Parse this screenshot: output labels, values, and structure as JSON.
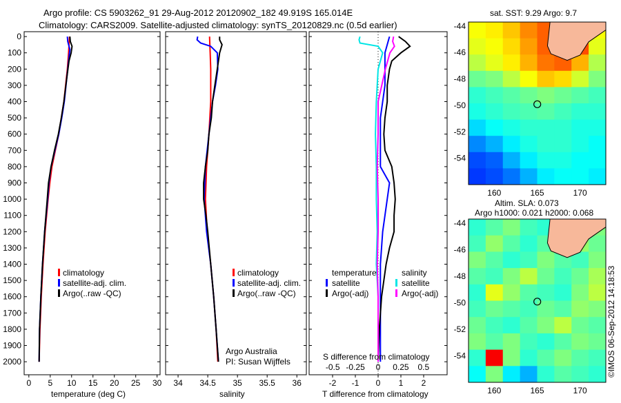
{
  "title_line1": "Argo profile: CS 5903262_91 29-Aug-2012 20120902_182 49.919S 165.014E",
  "title_line2": "Climatology: CARS2009. Satellite-adjusted climatology: synTS_20120829.nc (0.5d earlier)",
  "credit": "©IMOS 06-Sep-2012 14:18:53",
  "colors": {
    "climatology": "#ff0000",
    "satellite": "#0000ff",
    "argo": "#000000",
    "sal_satellite": "#00e5e5",
    "sal_argo": "#ff00ff"
  },
  "chart_data": [
    {
      "type": "line",
      "id": "temperature",
      "xlabel": "temperature (deg C)",
      "ylabel": "",
      "xlim": [
        -1.1,
        30.7
      ],
      "ylim": [
        2080,
        -30
      ],
      "xticks": [
        0,
        5,
        10,
        15,
        20,
        25,
        30
      ],
      "yticks": [
        0,
        100,
        200,
        300,
        400,
        500,
        600,
        700,
        800,
        900,
        1000,
        1100,
        1200,
        1300,
        1400,
        1500,
        1600,
        1700,
        1800,
        1900,
        2000
      ],
      "legend": [
        "climatology",
        "satellite-adj. clim.",
        "Argo(..raw -QC)"
      ],
      "series": [
        {
          "name": "climatology",
          "color": "#ff0000",
          "depth": [
            0,
            100,
            200,
            300,
            400,
            500,
            600,
            700,
            800,
            900,
            1000,
            1200,
            1400,
            1600,
            1800,
            2000
          ],
          "values": [
            9.5,
            9.3,
            9.0,
            8.6,
            8.2,
            7.6,
            7.0,
            6.2,
            5.4,
            4.9,
            4.5,
            3.8,
            3.3,
            2.9,
            2.6,
            2.4
          ]
        },
        {
          "name": "satellite-adj. clim.",
          "color": "#0000ff",
          "depth": [
            0,
            30,
            80,
            150,
            250,
            400,
            500,
            600,
            700,
            800,
            900,
            1000,
            1200,
            1400,
            1600,
            1800,
            2000
          ],
          "values": [
            9.0,
            9.1,
            9.6,
            9.3,
            8.9,
            8.3,
            7.7,
            7.0,
            6.1,
            5.2,
            4.7,
            4.4,
            3.7,
            3.2,
            2.8,
            2.5,
            2.4
          ]
        },
        {
          "name": "Argo(..raw -QC)",
          "color": "#000000",
          "depth": [
            0,
            30,
            60,
            100,
            150,
            250,
            400,
            500,
            600,
            700,
            800,
            900,
            1000,
            1200,
            1400,
            1600,
            1800,
            2000
          ],
          "values": [
            9.6,
            9.7,
            10.1,
            9.9,
            9.4,
            8.9,
            8.2,
            7.6,
            6.9,
            6.0,
            5.2,
            4.6,
            4.3,
            3.7,
            3.2,
            2.8,
            2.5,
            2.4
          ]
        }
      ]
    },
    {
      "type": "line",
      "id": "salinity",
      "xlabel": "salinity",
      "ylabel": "",
      "xlim": [
        33.79,
        36.16
      ],
      "ylim": [
        2080,
        -30
      ],
      "xticks": [
        34,
        34.5,
        35,
        35.5,
        36
      ],
      "legend": [
        "climatology",
        "satellite-adj. clim.",
        "Argo(..raw -QC)"
      ],
      "annotation": [
        "Argo Australia",
        "PI: Susan Wijffels"
      ],
      "series": [
        {
          "name": "climatology",
          "color": "#ff0000",
          "depth": [
            0,
            100,
            200,
            400,
            600,
            800,
            1000,
            1200,
            1400,
            1600,
            1800,
            2000
          ],
          "values": [
            34.53,
            34.54,
            34.55,
            34.55,
            34.52,
            34.48,
            34.46,
            34.49,
            34.55,
            34.6,
            34.64,
            34.67
          ]
        },
        {
          "name": "satellite-adj. clim.",
          "color": "#0000ff",
          "depth": [
            0,
            20,
            40,
            60,
            100,
            200,
            300,
            400,
            600,
            800,
            1000,
            1200,
            1400,
            1600,
            1800,
            2000
          ],
          "values": [
            34.33,
            34.32,
            34.38,
            34.55,
            34.66,
            34.67,
            34.63,
            34.58,
            34.52,
            34.46,
            34.44,
            34.48,
            34.55,
            34.6,
            34.64,
            34.68
          ]
        },
        {
          "name": "Argo(..raw -QC)",
          "color": "#000000",
          "depth": [
            0,
            20,
            50,
            100,
            150,
            200,
            300,
            400,
            500,
            600,
            700,
            800,
            900,
            1000,
            1100,
            1200,
            1400,
            1600,
            1800,
            2000
          ],
          "values": [
            34.7,
            34.7,
            34.74,
            34.7,
            34.68,
            34.66,
            34.62,
            34.58,
            34.56,
            34.52,
            34.5,
            34.46,
            34.43,
            34.43,
            34.47,
            34.5,
            34.55,
            34.6,
            34.64,
            34.68
          ]
        }
      ]
    },
    {
      "type": "line",
      "id": "difference",
      "xlabel": "T difference from climatology",
      "x2label": "S difference from climatology",
      "xlim": [
        -3.03,
        3.03
      ],
      "x2lim": [
        -0.76,
        0.76
      ],
      "ylim": [
        2080,
        -30
      ],
      "xticks": [
        -2,
        -1,
        0,
        1,
        2
      ],
      "x2ticks": [
        -0.5,
        -0.25,
        0,
        0.25,
        0.5
      ],
      "x2ticklabels": [
        "-0.5",
        "-0.25",
        "0",
        "0.25",
        "0.5"
      ],
      "legend_temperature": {
        "title": "temperature",
        "items": [
          "satellite",
          "Argo(-adj)"
        ]
      },
      "legend_salinity": {
        "title": "salinity",
        "items": [
          "satellite",
          "Argo(-adj)"
        ]
      },
      "series": [
        {
          "name": "temperature satellite",
          "axis": "T",
          "color": "#0000ff",
          "depth": [
            0,
            50,
            100,
            200,
            300,
            400,
            500,
            600,
            700,
            800,
            900,
            1000,
            1200,
            1400,
            1600,
            1800,
            2000
          ],
          "values": [
            0.5,
            0.4,
            0.3,
            0.3,
            0.3,
            0.2,
            0.1,
            0.1,
            0.1,
            0.1,
            0.5,
            0.4,
            0.2,
            0.1,
            0.1,
            0.1,
            0.1
          ]
        },
        {
          "name": "temperature Argo(-adj)",
          "axis": "T",
          "color": "#000000",
          "depth": [
            0,
            30,
            60,
            100,
            150,
            200,
            300,
            400,
            500,
            600,
            700,
            800,
            900,
            1000,
            1100,
            1200,
            1300,
            1400,
            1500,
            1600,
            1800,
            2000
          ],
          "values": [
            0.9,
            1.2,
            1.4,
            1.0,
            0.6,
            0.5,
            0.4,
            0.4,
            0.3,
            0.25,
            0.3,
            0.6,
            0.7,
            0.75,
            0.7,
            0.7,
            0.5,
            0.35,
            0.25,
            0.15,
            0.05,
            0.0
          ]
        },
        {
          "name": "salinity satellite",
          "axis": "S",
          "color": "#00e5e5",
          "depth": [
            0,
            20,
            40,
            60,
            100,
            200,
            400,
            600,
            800,
            1000,
            1200,
            1400,
            1600,
            1800,
            2000
          ],
          "values": [
            -0.2,
            -0.21,
            -0.2,
            0.0,
            0.05,
            0.0,
            -0.02,
            -0.03,
            -0.02,
            -0.02,
            -0.01,
            -0.02,
            0.0,
            0.0,
            0.0
          ]
        },
        {
          "name": "salinity Argo(-adj)",
          "axis": "S",
          "color": "#ff00ff",
          "depth": [
            0,
            30,
            60,
            100,
            200,
            300,
            400,
            500,
            600,
            800,
            1000,
            1200,
            1400,
            1600,
            1800,
            2000
          ],
          "values": [
            0.17,
            0.16,
            0.18,
            0.13,
            0.08,
            0.04,
            0.0,
            0.0,
            0.0,
            -0.01,
            0.0,
            0.0,
            -0.01,
            0.0,
            0.0,
            0.0
          ]
        }
      ]
    },
    {
      "type": "heatmap",
      "id": "sst_map",
      "title": "sat. SST: 9.29 Argo: 9.7",
      "xlim": [
        157,
        173
      ],
      "ylim": [
        -56,
        -43.7
      ],
      "xticks": [
        160,
        165,
        170
      ],
      "yticks": [
        -44,
        -46,
        -48,
        -50,
        -52,
        -54
      ],
      "float_position": [
        165.014,
        -49.919
      ],
      "grid": [
        [
          0.62,
          0.64,
          0.68,
          0.74,
          0.78,
          0.8,
          0.78,
          0.62
        ],
        [
          0.6,
          0.62,
          0.66,
          0.72,
          0.78,
          0.8,
          0.8,
          0.6
        ],
        [
          0.56,
          0.6,
          0.64,
          0.7,
          0.76,
          0.78,
          0.7,
          0.55
        ],
        [
          0.48,
          0.5,
          0.56,
          0.62,
          0.68,
          0.66,
          0.58,
          0.5
        ],
        [
          0.42,
          0.44,
          0.46,
          0.48,
          0.5,
          0.48,
          0.46,
          0.44
        ],
        [
          0.4,
          0.42,
          0.44,
          0.45,
          0.46,
          0.44,
          0.42,
          0.42
        ],
        [
          0.34,
          0.38,
          0.4,
          0.42,
          0.42,
          0.42,
          0.4,
          0.4
        ],
        [
          0.26,
          0.3,
          0.36,
          0.4,
          0.42,
          0.42,
          0.4,
          0.38
        ],
        [
          0.2,
          0.22,
          0.3,
          0.36,
          0.4,
          0.4,
          0.38,
          0.38
        ],
        [
          0.18,
          0.2,
          0.24,
          0.3,
          0.36,
          0.38,
          0.38,
          0.36
        ]
      ]
    },
    {
      "type": "heatmap",
      "id": "sla_map",
      "title": "Altim. SLA: 0.073",
      "subtitle": "Argo h1000: 0.021 h2000: 0.068",
      "xlim": [
        157,
        173
      ],
      "ylim": [
        -56,
        -43.7
      ],
      "xticks": [
        160,
        165,
        170
      ],
      "yticks": [
        -44,
        -46,
        -48,
        -50,
        -52,
        -54
      ],
      "float_position": [
        165.014,
        -49.919
      ],
      "grid": [
        [
          0.42,
          0.46,
          0.5,
          0.44,
          0.42,
          0.5,
          0.56,
          0.5
        ],
        [
          0.44,
          0.52,
          0.46,
          0.42,
          0.46,
          0.5,
          0.52,
          0.48
        ],
        [
          0.5,
          0.46,
          0.42,
          0.44,
          0.5,
          0.46,
          0.44,
          0.5
        ],
        [
          0.46,
          0.44,
          0.5,
          0.56,
          0.48,
          0.44,
          0.48,
          0.54
        ],
        [
          0.42,
          0.6,
          0.52,
          0.46,
          0.44,
          0.42,
          0.5,
          0.56
        ],
        [
          0.44,
          0.48,
          0.46,
          0.44,
          0.48,
          0.46,
          0.52,
          0.5
        ],
        [
          0.48,
          0.44,
          0.42,
          0.46,
          0.5,
          0.56,
          0.48,
          0.46
        ],
        [
          0.5,
          0.46,
          0.5,
          0.44,
          0.42,
          0.46,
          0.5,
          0.48
        ],
        [
          0.42,
          0.88,
          0.5,
          0.42,
          0.46,
          0.5,
          0.46,
          0.44
        ],
        [
          0.38,
          0.5,
          0.36,
          0.3,
          0.42,
          0.46,
          0.44,
          0.42
        ]
      ]
    }
  ]
}
